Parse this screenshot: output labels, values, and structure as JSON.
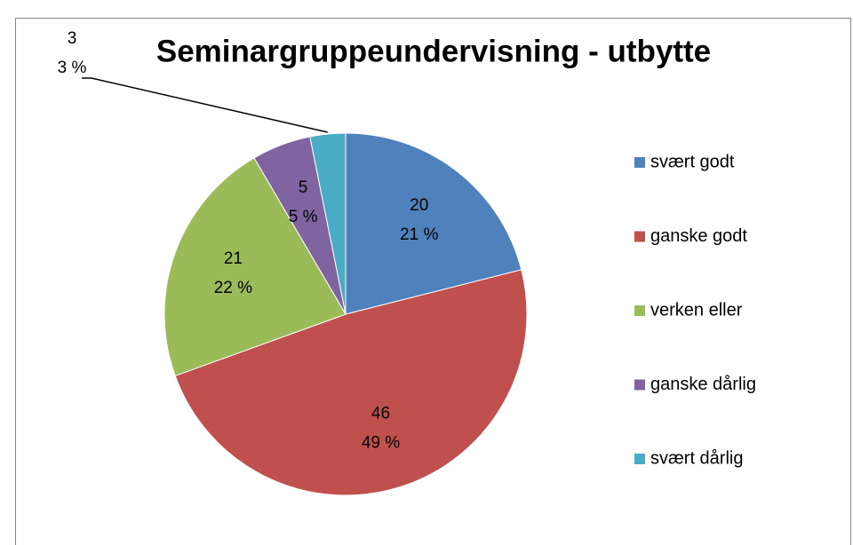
{
  "chart_data": {
    "type": "pie",
    "title": "Seminargruppeundervisning - utbytte",
    "categories": [
      "svært godt",
      "ganske godt",
      "verken eller",
      "ganske dårlig",
      "svært dårlig"
    ],
    "values": [
      20,
      46,
      21,
      5,
      3
    ],
    "percentages": [
      21,
      49,
      22,
      5,
      3
    ],
    "percentage_labels": [
      "21 %",
      "49 %",
      "22 %",
      "5 %",
      "3 %"
    ],
    "colors": [
      "#4f81bd",
      "#c0504d",
      "#9bbb59",
      "#8064a2",
      "#4bacc6"
    ],
    "legend": "right"
  }
}
